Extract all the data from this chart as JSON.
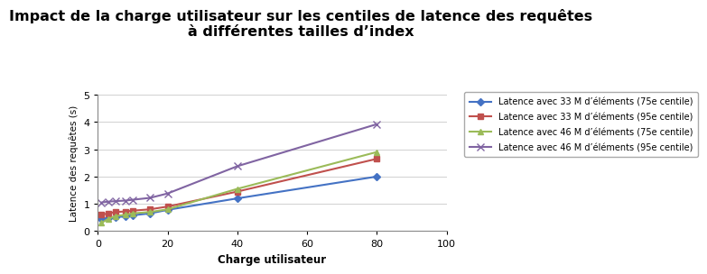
{
  "title_line1": "Impact de la charge utilisateur sur les centiles de latence des requêtes",
  "title_line2": "à différentes tailles d’index",
  "xlabel": "Charge utilisateur",
  "ylabel": "Latence des requêtes (s)",
  "xlim": [
    0,
    100
  ],
  "ylim": [
    0,
    5
  ],
  "xticks": [
    0,
    20,
    40,
    60,
    80,
    100
  ],
  "yticks": [
    0,
    1,
    2,
    3,
    4,
    5
  ],
  "series": [
    {
      "label": "Latence avec 33 M d’éléments (75e centile)",
      "x": [
        1,
        3,
        5,
        8,
        10,
        15,
        20,
        40,
        80
      ],
      "y": [
        0.45,
        0.48,
        0.5,
        0.55,
        0.58,
        0.65,
        0.78,
        1.2,
        2.0
      ],
      "color": "#4472C4",
      "marker": "D",
      "markersize": 4,
      "linewidth": 1.5
    },
    {
      "label": "Latence avec 33 M d’éléments (95e centile)",
      "x": [
        1,
        3,
        5,
        8,
        10,
        15,
        20,
        40,
        80
      ],
      "y": [
        0.6,
        0.65,
        0.7,
        0.72,
        0.75,
        0.8,
        0.9,
        1.45,
        2.65
      ],
      "color": "#C0504D",
      "marker": "s",
      "markersize": 4,
      "linewidth": 1.5
    },
    {
      "label": "Latence avec 46 M d’éléments (75e centile)",
      "x": [
        1,
        3,
        5,
        8,
        10,
        15,
        20,
        40,
        80
      ],
      "y": [
        0.3,
        0.45,
        0.55,
        0.6,
        0.65,
        0.7,
        0.8,
        1.55,
        2.9
      ],
      "color": "#9BBB59",
      "marker": "^",
      "markersize": 4,
      "linewidth": 1.5
    },
    {
      "label": "Latence avec 46 M d’éléments (95e centile)",
      "x": [
        1,
        3,
        5,
        8,
        10,
        15,
        20,
        40,
        80
      ],
      "y": [
        1.05,
        1.08,
        1.1,
        1.12,
        1.15,
        1.22,
        1.38,
        2.38,
        3.92
      ],
      "color": "#8064A2",
      "marker": "x",
      "markersize": 6,
      "linewidth": 1.5
    }
  ],
  "legend_fontsize": 7.0,
  "title_fontsize": 11.5,
  "axis_label_fontsize": 8.5,
  "tick_fontsize": 8,
  "ylabel_fontsize": 7.5,
  "background_color": "#FFFFFF",
  "plot_background": "#FFFFFF",
  "grid_color": "#D0D0D0",
  "spine_color": "#888888"
}
